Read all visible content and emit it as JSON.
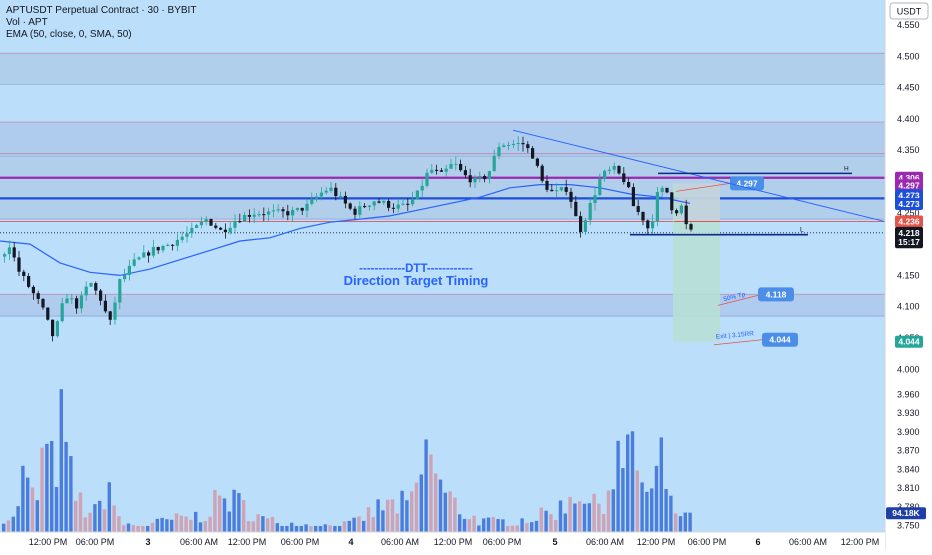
{
  "header": {
    "symbol_line": "APTUSDT Perpetual Contract · 30 · BYBIT",
    "volume_line": "Vol · APT",
    "ema_line": "EMA (50, close, 0, SMA, 50)"
  },
  "currency_label": "USDT",
  "colors": {
    "background": "#bbdefb",
    "up_candle": "#26a69a",
    "down_candle": "#131722",
    "volume_up": "#3f73d8",
    "volume_down": "#d09cac",
    "ema": "#2962ff",
    "resistance_purple": "#9c27b0",
    "zone_blue": "#1e4fd8",
    "accent_red": "#e5534b",
    "target_zone": "#b9dfd4"
  },
  "annotations": {
    "dtt_title": "------------DTT------------",
    "dtt_subtitle": "Direction Target Timing",
    "tp_text": "50% Tp",
    "exit_text": "Exit | 3.15RR",
    "h_label": "H",
    "l_label": "L"
  },
  "chart_data": {
    "type": "candlestick",
    "title": "APTUSDT Perpetual Contract · 30 · BYBIT",
    "y_axis": {
      "range": [
        3.74,
        4.59
      ],
      "scale": "linear",
      "ticks": [
        "4.550",
        "4.500",
        "4.450",
        "4.400",
        "4.350",
        "4.300",
        "4.250",
        "4.200",
        "4.150",
        "4.100",
        "4.050",
        "4.000",
        "3.960",
        "3.930",
        "3.900",
        "3.870",
        "3.840",
        "3.810",
        "3.780",
        "3.750"
      ]
    },
    "x_axis": {
      "ticks": [
        "12:00 PM",
        "06:00 PM",
        "3",
        "06:00 AM",
        "12:00 PM",
        "06:00 PM",
        "4",
        "06:00 AM",
        "12:00 PM",
        "06:00 PM",
        "5",
        "06:00 AM",
        "12:00 PM",
        "06:00 PM",
        "6",
        "06:00 AM",
        "12:00 PM"
      ]
    },
    "price_trajectory": [
      [
        0,
        4.18
      ],
      [
        8,
        4.2
      ],
      [
        16,
        4.16
      ],
      [
        28,
        4.13
      ],
      [
        40,
        4.1
      ],
      [
        52,
        4.05
      ],
      [
        64,
        4.12
      ],
      [
        76,
        4.1
      ],
      [
        88,
        4.14
      ],
      [
        100,
        4.11
      ],
      [
        108,
        4.07
      ],
      [
        118,
        4.14
      ],
      [
        132,
        4.17
      ],
      [
        150,
        4.19
      ],
      [
        168,
        4.2
      ],
      [
        190,
        4.22
      ],
      [
        205,
        4.24
      ],
      [
        220,
        4.22
      ],
      [
        235,
        4.24
      ],
      [
        252,
        4.25
      ],
      [
        270,
        4.25
      ],
      [
        290,
        4.25
      ],
      [
        305,
        4.26
      ],
      [
        318,
        4.28
      ],
      [
        328,
        4.29
      ],
      [
        340,
        4.27
      ],
      [
        352,
        4.25
      ],
      [
        372,
        4.27
      ],
      [
        392,
        4.26
      ],
      [
        405,
        4.26
      ],
      [
        416,
        4.28
      ],
      [
        428,
        4.32
      ],
      [
        440,
        4.31
      ],
      [
        452,
        4.33
      ],
      [
        462,
        4.31
      ],
      [
        474,
        4.3
      ],
      [
        486,
        4.31
      ],
      [
        498,
        4.36
      ],
      [
        510,
        4.36
      ],
      [
        522,
        4.36
      ],
      [
        532,
        4.34
      ],
      [
        540,
        4.3
      ],
      [
        552,
        4.28
      ],
      [
        566,
        4.29
      ],
      [
        578,
        4.22
      ],
      [
        588,
        4.26
      ],
      [
        600,
        4.31
      ],
      [
        612,
        4.32
      ],
      [
        624,
        4.3
      ],
      [
        632,
        4.26
      ],
      [
        642,
        4.24
      ],
      [
        648,
        4.22
      ],
      [
        656,
        4.28
      ],
      [
        664,
        4.29
      ],
      [
        672,
        4.25
      ],
      [
        680,
        4.26
      ],
      [
        686,
        4.22
      ],
      [
        692,
        4.218
      ]
    ],
    "volume_profile": [
      [
        0,
        0.18
      ],
      [
        12,
        0.12
      ],
      [
        22,
        0.55
      ],
      [
        34,
        0.25
      ],
      [
        42,
        0.8
      ],
      [
        52,
        0.58
      ],
      [
        60,
        1.0
      ],
      [
        72,
        0.38
      ],
      [
        84,
        0.22
      ],
      [
        96,
        0.18
      ],
      [
        106,
        0.52
      ],
      [
        118,
        0.08
      ],
      [
        140,
        0.06
      ],
      [
        170,
        0.12
      ],
      [
        200,
        0.16
      ],
      [
        222,
        0.35
      ],
      [
        240,
        0.26
      ],
      [
        262,
        0.12
      ],
      [
        290,
        0.08
      ],
      [
        320,
        0.06
      ],
      [
        350,
        0.08
      ],
      [
        380,
        0.25
      ],
      [
        410,
        0.28
      ],
      [
        428,
        0.82
      ],
      [
        440,
        0.4
      ],
      [
        460,
        0.2
      ],
      [
        480,
        0.1
      ],
      [
        500,
        0.1
      ],
      [
        520,
        0.12
      ],
      [
        540,
        0.16
      ],
      [
        560,
        0.24
      ],
      [
        578,
        0.46
      ],
      [
        590,
        0.22
      ],
      [
        605,
        0.4
      ],
      [
        616,
        0.7
      ],
      [
        626,
        0.65
      ],
      [
        632,
        0.9
      ],
      [
        640,
        0.5
      ],
      [
        648,
        0.3
      ],
      [
        660,
        0.7
      ],
      [
        668,
        0.25
      ],
      [
        690,
        0.12
      ]
    ],
    "ema": [
      [
        0,
        4.205
      ],
      [
        30,
        4.2
      ],
      [
        60,
        4.17
      ],
      [
        90,
        4.155
      ],
      [
        120,
        4.15
      ],
      [
        150,
        4.16
      ],
      [
        180,
        4.175
      ],
      [
        210,
        4.19
      ],
      [
        240,
        4.205
      ],
      [
        270,
        4.21
      ],
      [
        300,
        4.225
      ],
      [
        330,
        4.235
      ],
      [
        360,
        4.24
      ],
      [
        390,
        4.245
      ],
      [
        420,
        4.255
      ],
      [
        450,
        4.265
      ],
      [
        480,
        4.275
      ],
      [
        510,
        4.29
      ],
      [
        540,
        4.295
      ],
      [
        570,
        4.295
      ],
      [
        600,
        4.29
      ],
      [
        630,
        4.28
      ],
      [
        660,
        4.275
      ],
      [
        690,
        4.265
      ]
    ],
    "zones": [
      {
        "from": 4.455,
        "to": 4.505,
        "color": "#a7c2df"
      },
      {
        "from": 4.34,
        "to": 4.395,
        "color": "#a6bde6"
      },
      {
        "from": 4.24,
        "to": 4.345,
        "color": "#a9c1df"
      },
      {
        "from": 4.085,
        "to": 4.12,
        "color": "#a6bde6"
      }
    ],
    "horizontal_levels": [
      {
        "value": 4.306,
        "color": "#9c27b0"
      },
      {
        "value": 4.273,
        "color": "#1e4fd8"
      },
      {
        "value": 4.236,
        "color": "#e5534b"
      },
      {
        "value": 4.218,
        "color": "#131722"
      }
    ],
    "trendline": {
      "from": [
        513,
        4.382
      ],
      "to": [
        885,
        4.236
      ]
    },
    "range_lines": [
      {
        "label": "H",
        "value": 4.313,
        "x_from": 658,
        "x_to": 852
      },
      {
        "label": "L",
        "value": 4.215,
        "x_from": 630,
        "x_to": 808
      }
    ],
    "target_zone": {
      "x_from": 673,
      "x_to": 720,
      "top": 4.297,
      "bottom": 4.044
    },
    "stop_zone": {
      "x_from": 678,
      "x_to": 720,
      "top": 4.297,
      "bottom": 4.236
    },
    "levels": {
      "entry": "4.297",
      "tp": "4.118",
      "exit": "4.044"
    },
    "axis_badges": [
      {
        "label": "4.306",
        "value": 4.306,
        "bg": "#9c27b0"
      },
      {
        "label": "4.297",
        "value": 4.294,
        "bg": "#9c27b0"
      },
      {
        "label": "4.273",
        "value": 4.278,
        "bg": "#1e4fd8"
      },
      {
        "label": "4.273",
        "value": 4.264,
        "bg": "#1e4fd8"
      },
      {
        "label": "4.236",
        "value": 4.236,
        "bg": "#e5534b"
      },
      {
        "label": "4.218",
        "value": 4.218,
        "bg": "#131722"
      },
      {
        "label": "15:17",
        "value": 4.203,
        "bg": "#131722"
      },
      {
        "label": "4.044",
        "value": 4.044,
        "bg": "#26a69a"
      }
    ],
    "volume_last": "94.18K",
    "volume_last_value": 3.77
  }
}
